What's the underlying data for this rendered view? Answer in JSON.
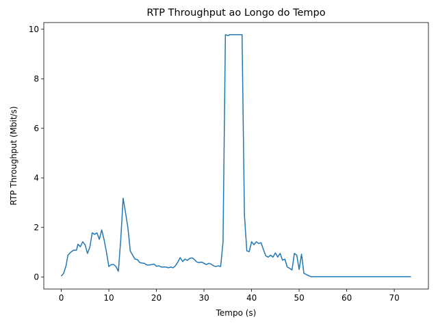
{
  "chart_data": {
    "type": "line",
    "title": "RTP Throughput ao Longo do Tempo",
    "x_label": "Tempo (s)",
    "y_label": "RTP Throughput (Mbit/s)",
    "color": "#1f77b4",
    "grid": false,
    "x": [
      0,
      0.5,
      1,
      1.4,
      2,
      2.6,
      3.2,
      3.5,
      4,
      4.5,
      5,
      5.5,
      6,
      6.5,
      7,
      7.5,
      8,
      8.5,
      9,
      9.5,
      10,
      10.5,
      11,
      11.5,
      12,
      12.5,
      13,
      13.5,
      14,
      14.5,
      15,
      15.5,
      16,
      16.5,
      17,
      17.5,
      18,
      18.5,
      19,
      19.5,
      20,
      20.5,
      21,
      21.5,
      22,
      22.5,
      23,
      23.5,
      24,
      24.5,
      25,
      25.5,
      26,
      26.5,
      27,
      27.5,
      28,
      28.5,
      29,
      29.5,
      30,
      30.5,
      31,
      31.5,
      32,
      32.5,
      33,
      33.5,
      34,
      34.5,
      35,
      35.5,
      36,
      36.5,
      37,
      37.5,
      38,
      38.5,
      39,
      39.5,
      40,
      40.5,
      41,
      41.5,
      42,
      42.5,
      43,
      43.5,
      44,
      44.5,
      45,
      45.5,
      46,
      46.5,
      47,
      47.5,
      48,
      48.5,
      49,
      49.5,
      50,
      50.5,
      51,
      51.5,
      52,
      52.5,
      55,
      60,
      65,
      70,
      73.5
    ],
    "values": [
      0.03,
      0.15,
      0.45,
      0.88,
      1.0,
      1.08,
      1.08,
      1.32,
      1.22,
      1.42,
      1.3,
      0.95,
      1.2,
      1.78,
      1.72,
      1.78,
      1.52,
      1.9,
      1.5,
      1.0,
      0.42,
      0.5,
      0.5,
      0.42,
      0.23,
      1.5,
      3.18,
      2.6,
      2.0,
      1.05,
      0.88,
      0.72,
      0.7,
      0.58,
      0.56,
      0.55,
      0.48,
      0.48,
      0.5,
      0.52,
      0.43,
      0.45,
      0.4,
      0.4,
      0.4,
      0.37,
      0.4,
      0.37,
      0.45,
      0.6,
      0.78,
      0.62,
      0.72,
      0.67,
      0.75,
      0.77,
      0.7,
      0.6,
      0.58,
      0.6,
      0.55,
      0.5,
      0.55,
      0.52,
      0.45,
      0.42,
      0.45,
      0.42,
      1.4,
      9.78,
      9.75,
      9.78,
      9.78,
      9.78,
      9.78,
      9.78,
      9.78,
      2.5,
      1.05,
      1.02,
      1.42,
      1.3,
      1.42,
      1.35,
      1.38,
      1.1,
      0.85,
      0.8,
      0.88,
      0.8,
      0.97,
      0.8,
      0.95,
      0.68,
      0.72,
      0.4,
      0.35,
      0.28,
      0.95,
      0.88,
      0.3,
      0.92,
      0.15,
      0.1,
      0.05,
      0.01,
      0.01,
      0.01,
      0.01,
      0.01,
      0.01
    ],
    "xlim": [
      -3.675,
      77.175
    ],
    "ylim": [
      -0.489,
      10.27
    ],
    "xticks": [
      0,
      10,
      20,
      30,
      40,
      50,
      60,
      70
    ],
    "yticks": [
      0,
      2,
      4,
      6,
      8,
      10
    ]
  }
}
